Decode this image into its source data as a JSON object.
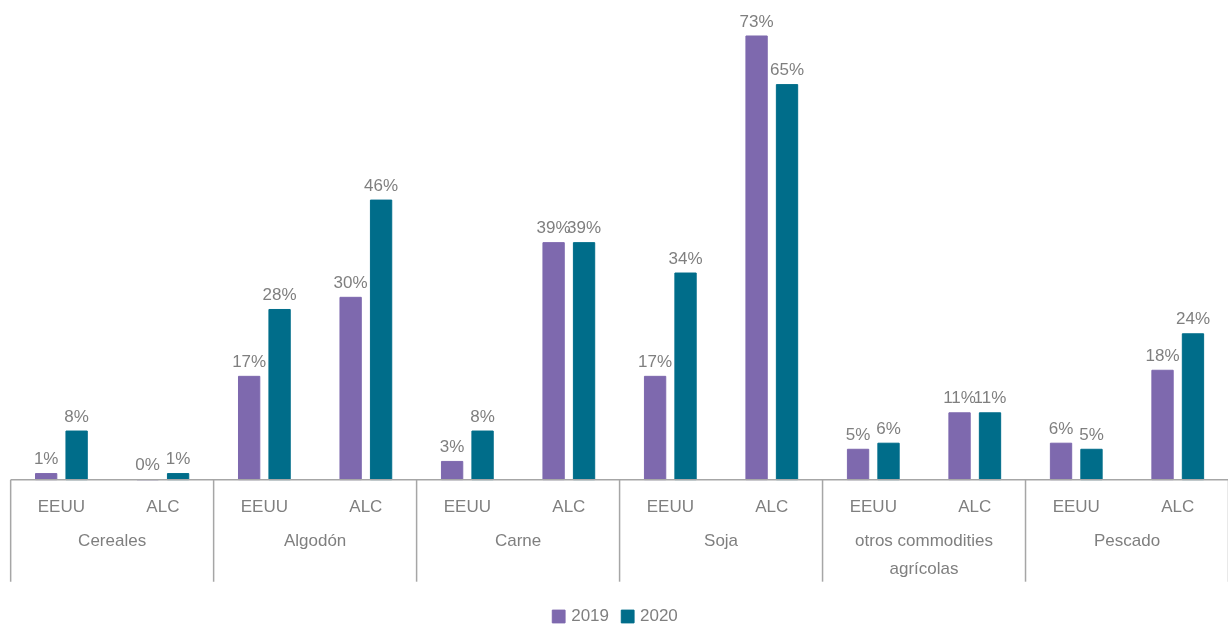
{
  "chart_data": {
    "type": "bar",
    "categories": [
      "EEUU",
      "ALC",
      "EEUU",
      "ALC",
      "EEUU",
      "ALC",
      "EEUU",
      "ALC",
      "EEUU",
      "ALC",
      "EEUU",
      "ALC"
    ],
    "annotations": [
      "Cereales",
      "Algodón",
      "Carne",
      "Soja",
      "otros commodities agrícolas",
      "Pescado"
    ],
    "series": [
      {
        "name": "2019",
        "color": "#7e69ae",
        "values": [
          1,
          0,
          17,
          30,
          3,
          39,
          17,
          73,
          5,
          11,
          6,
          18
        ],
        "value_labels": [
          "1%",
          "0%",
          "17%",
          "30%",
          "3%",
          "39%",
          "17%",
          "73%",
          "5%",
          "11%",
          "6%",
          "18%"
        ]
      },
      {
        "name": "2020",
        "color": "#006d8a",
        "values": [
          8,
          1,
          28,
          46,
          8,
          39,
          34,
          65,
          6,
          11,
          5,
          24
        ],
        "value_labels": [
          "8%",
          "1%",
          "28%",
          "46%",
          "8%",
          "39%",
          "34%",
          "65%",
          "6%",
          "11%",
          "5%",
          "24%"
        ]
      }
    ],
    "grid": false,
    "legend": "bottom"
  }
}
